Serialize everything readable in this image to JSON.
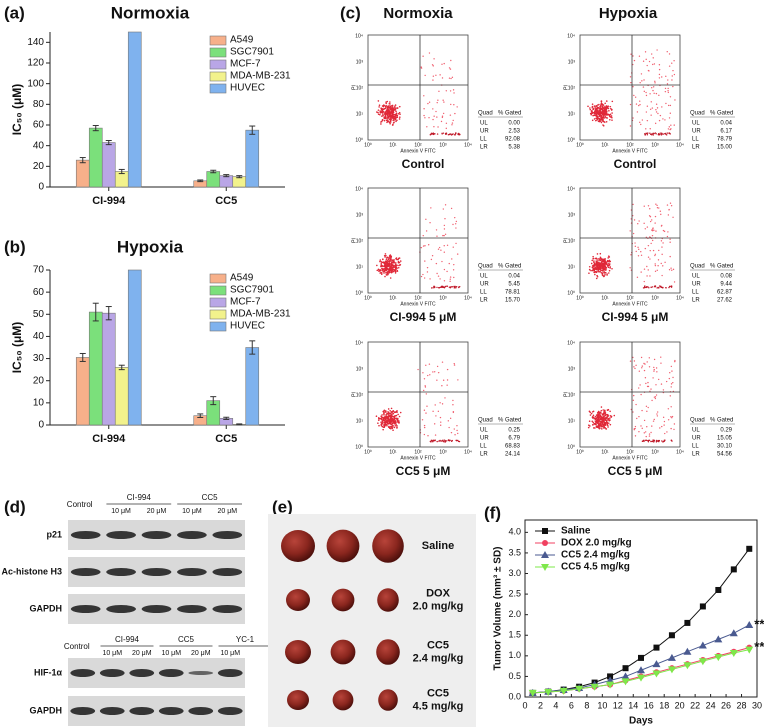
{
  "chart_data": [
    {
      "type": "bar",
      "panel": "(a)",
      "title": "Normoxia",
      "ylabel": "IC₅₀ (μM)",
      "categories": [
        "CI-994",
        "CC5"
      ],
      "series": [
        {
          "name": "A549",
          "color": "#f7b08a",
          "values": [
            26,
            6
          ],
          "errors": [
            2.5,
            0.8
          ]
        },
        {
          "name": "SGC7901",
          "color": "#7be07b",
          "values": [
            57,
            15
          ],
          "errors": [
            2.5,
            1.2
          ]
        },
        {
          "name": "MCF-7",
          "color": "#b9a6e6",
          "values": [
            43,
            11
          ],
          "errors": [
            2,
            1
          ]
        },
        {
          "name": "MDA-MB-231",
          "color": "#f2f28c",
          "values": [
            15,
            10
          ],
          "errors": [
            2,
            1
          ]
        },
        {
          "name": "HUVEC",
          "color": "#7fb2ee",
          "values": [
            150,
            55
          ],
          "errors": [
            0,
            4
          ]
        }
      ],
      "ylim": [
        0,
        150
      ],
      "yticks": [
        0,
        20,
        40,
        60,
        80,
        100,
        120,
        140
      ]
    },
    {
      "type": "bar",
      "panel": "(b)",
      "title": "Hypoxia",
      "ylabel": "IC₅₀ (μM)",
      "categories": [
        "CI-994",
        "CC5"
      ],
      "series": [
        {
          "name": "A549",
          "color": "#f7b08a",
          "values": [
            30.5,
            4.2
          ],
          "errors": [
            1.8,
            0.8
          ]
        },
        {
          "name": "SGC7901",
          "color": "#7be07b",
          "values": [
            51,
            11
          ],
          "errors": [
            4,
            1.8
          ]
        },
        {
          "name": "MCF-7",
          "color": "#b9a6e6",
          "values": [
            50.5,
            3
          ],
          "errors": [
            3,
            0.5
          ]
        },
        {
          "name": "MDA-MB-231",
          "color": "#f2f28c",
          "values": [
            26,
            0.3
          ],
          "errors": [
            1,
            0.2
          ]
        },
        {
          "name": "HUVEC",
          "color": "#7fb2ee",
          "values": [
            70,
            35
          ],
          "errors": [
            0,
            3
          ]
        }
      ],
      "ylim": [
        0,
        70
      ],
      "yticks": [
        0,
        10,
        20,
        30,
        40,
        50,
        60,
        70
      ]
    },
    {
      "type": "line",
      "panel": "(f)",
      "xlabel": "Days",
      "ylabel": "Tumor Volume (mm³ ± SD)",
      "x": [
        1,
        3,
        5,
        7,
        9,
        11,
        13,
        15,
        17,
        19,
        21,
        23,
        25,
        27,
        29
      ],
      "series": [
        {
          "name": "Saline",
          "color": "#111111",
          "marker": "square",
          "values": [
            0.1,
            0.13,
            0.18,
            0.25,
            0.35,
            0.5,
            0.7,
            0.95,
            1.2,
            1.5,
            1.8,
            2.2,
            2.6,
            3.1,
            3.6
          ]
        },
        {
          "name": "DOX 2.0 mg/kg",
          "color": "#f04060",
          "marker": "circle",
          "values": [
            0.1,
            0.12,
            0.15,
            0.2,
            0.25,
            0.3,
            0.4,
            0.5,
            0.6,
            0.7,
            0.8,
            0.9,
            1.0,
            1.1,
            1.2
          ]
        },
        {
          "name": "CC5 2.4 mg/kg",
          "color": "#4a5a90",
          "marker": "triangle-up",
          "values": [
            0.1,
            0.13,
            0.17,
            0.22,
            0.3,
            0.4,
            0.5,
            0.65,
            0.8,
            0.95,
            1.1,
            1.25,
            1.4,
            1.55,
            1.75
          ]
        },
        {
          "name": "CC5 4.5 mg/kg",
          "color": "#7ee84a",
          "marker": "triangle-down",
          "values": [
            0.1,
            0.12,
            0.15,
            0.2,
            0.25,
            0.3,
            0.38,
            0.47,
            0.57,
            0.67,
            0.77,
            0.87,
            0.97,
            1.07,
            1.15
          ]
        }
      ],
      "xlim": [
        0,
        30
      ],
      "xticks": [
        0,
        2,
        4,
        6,
        8,
        10,
        12,
        14,
        16,
        18,
        20,
        22,
        24,
        26,
        28,
        30
      ],
      "ylim": [
        0,
        4.3
      ],
      "yticks": [
        {
          "value": 0,
          "label": "0.0"
        },
        {
          "value": 0.5,
          "label": "0.5"
        },
        {
          "value": 1,
          "label": "1.0"
        },
        {
          "value": 1.5,
          "label": "1.5"
        },
        {
          "value": 2,
          "label": "2.0"
        },
        {
          "value": 2.5,
          "label": "2.5"
        },
        {
          "value": 3,
          "label": "3.0"
        },
        {
          "value": 3.5,
          "label": "3.5"
        },
        {
          "value": 4,
          "label": "4.0"
        }
      ],
      "annotations": [
        {
          "text": "**",
          "x": 29,
          "y": 1.75
        },
        {
          "text": "**",
          "x": 29,
          "y": 1.2
        }
      ]
    }
  ],
  "flow": {
    "panel": "(c)",
    "columns": [
      "Normoxia",
      "Hypoxia"
    ],
    "axis_x": "Annexin V FITC",
    "axis_y": "PI",
    "tick_labels": [
      "10⁰",
      "10¹",
      "10²",
      "10³",
      "10⁴"
    ],
    "table_header": [
      "Quad",
      "% Gated"
    ],
    "quadrants": [
      "UL",
      "UR",
      "LL",
      "LR"
    ],
    "plots": [
      {
        "caption": "Control",
        "gated": [
          "0.00",
          "2.53",
          "92.08",
          "5.38"
        ]
      },
      {
        "caption": "Control",
        "gated": [
          "0.04",
          "6.17",
          "78.79",
          "15.00"
        ]
      },
      {
        "caption": "CI-994  5 μM",
        "gated": [
          "0.04",
          "5.45",
          "78.81",
          "15.70"
        ]
      },
      {
        "caption": "CI-994 5 μM",
        "gated": [
          "0.08",
          "9.44",
          "62.87",
          "27.62"
        ]
      },
      {
        "caption": "CC5  5 μM",
        "gated": [
          "0.25",
          "6.79",
          "68.83",
          "24.14"
        ]
      },
      {
        "caption": "CC5 5 μM",
        "gated": [
          "0.29",
          "15.05",
          "30.10",
          "54.56"
        ]
      }
    ]
  },
  "blots": {
    "panel": "(d)",
    "top": {
      "headers": [
        "Control",
        "CI-994",
        "CC5"
      ],
      "doses": [
        "10 μM",
        "20 μM",
        "10 μM",
        "20 μM"
      ],
      "rows": [
        "p21",
        "Ac-histone H3",
        "GAPDH"
      ]
    },
    "bottom": {
      "headers": [
        "Control",
        "CI-994",
        "CC5",
        "YC-1"
      ],
      "doses": [
        "10 μM",
        "20 μM",
        "10 μM",
        "20 μM",
        "10 μM"
      ],
      "rows": [
        "HIF-1α",
        "GAPDH"
      ]
    }
  },
  "tumors": {
    "panel": "(e)",
    "groups": [
      [
        "Saline"
      ],
      [
        "DOX",
        "2.0 mg/kg"
      ],
      [
        "CC5",
        "2.4 mg/kg"
      ],
      [
        "CC5",
        "4.5 mg/kg"
      ]
    ]
  }
}
